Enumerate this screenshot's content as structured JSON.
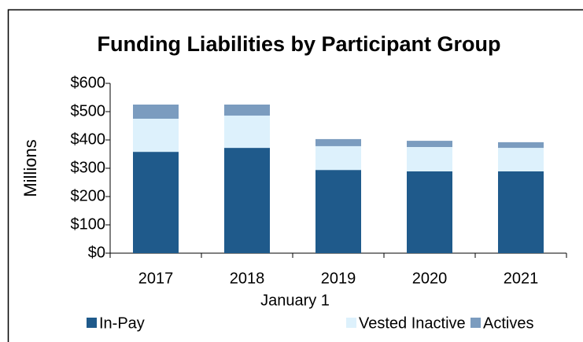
{
  "chart_data": {
    "type": "stacked_bar",
    "title": "Funding Liabilities by Participant Group",
    "y_label": "Millions",
    "x_label": "January  1",
    "categories": [
      "2017",
      "2018",
      "2019",
      "2020",
      "2021"
    ],
    "series": [
      {
        "name": "In-Pay",
        "color": "#1f5a8b",
        "values": [
          358,
          372,
          294,
          289,
          289
        ]
      },
      {
        "name": "Vested Inactive",
        "color": "#ddf1fc",
        "values": [
          117,
          114,
          84,
          86,
          83
        ]
      },
      {
        "name": "Actives",
        "color": "#7b9cbf",
        "values": [
          50,
          39,
          25,
          22,
          20
        ]
      }
    ],
    "ylim": [
      0,
      600
    ],
    "yticks": [
      {
        "value": 0,
        "label": "$0"
      },
      {
        "value": 100,
        "label": "$100"
      },
      {
        "value": 200,
        "label": "$200"
      },
      {
        "value": 300,
        "label": "$300"
      },
      {
        "value": 400,
        "label": "$400"
      },
      {
        "value": 500,
        "label": "$500"
      },
      {
        "value": 600,
        "label": "$600"
      }
    ],
    "grid": false,
    "legend": "bottom"
  }
}
